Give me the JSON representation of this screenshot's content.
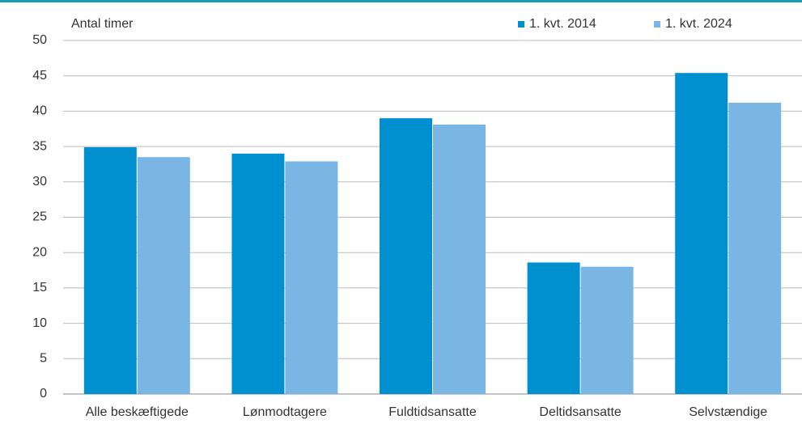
{
  "chart_data": {
    "type": "bar",
    "y_label": "Antal timer",
    "categories": [
      "Alle beskæftigede",
      "Lønmodtagere",
      "Fuldtidsansatte",
      "Deltidsansatte",
      "Selvstændige"
    ],
    "series": [
      {
        "name": "1. kvt. 2014",
        "color": "#0090d0",
        "values": [
          34.9,
          34.0,
          39.0,
          18.6,
          45.4
        ]
      },
      {
        "name": "1. kvt. 2024",
        "color": "#7ab6e3",
        "values": [
          33.5,
          32.9,
          38.1,
          18.0,
          41.2
        ]
      }
    ],
    "ylim": [
      0,
      50
    ],
    "yticks": [
      0,
      5,
      10,
      15,
      20,
      25,
      30,
      35,
      40,
      45,
      50
    ],
    "grid": true
  }
}
